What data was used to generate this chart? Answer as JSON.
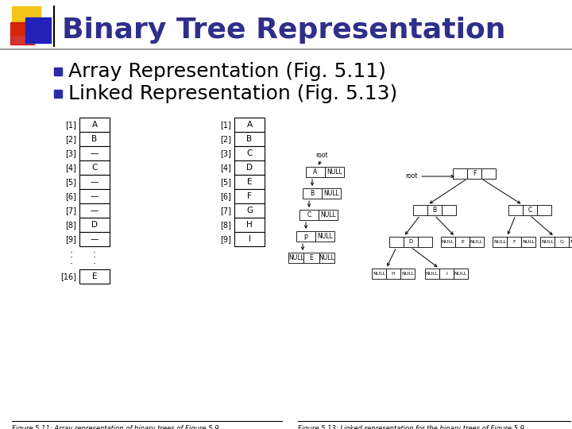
{
  "title": "Binary Tree Representation",
  "title_color": "#2E2E8B",
  "title_fontsize": 26,
  "bullet1": "Array Representation (Fig. 5.11)",
  "bullet2": "Linked Representation (Fig. 5.13)",
  "bullet_fontsize": 18,
  "bullet_color": "#000000",
  "bullet_square_color": "#2B2BAA",
  "bg_color": "#FFFFFF",
  "decoration_yellow": "#F5C518",
  "decoration_red": "#CC0000",
  "decoration_blue": "#2222BB",
  "header_line_color": "#888888",
  "fig511_caption": "Figure 5.11: Array representation of binary trees of Figure 5.9",
  "fig513_caption": "Figure 5.13: Linked representation for the binary trees of Figure 5.9",
  "array1_labels": [
    "[1]",
    "[2]",
    "[3]",
    "[4]",
    "[5]",
    "[6]",
    "[7]",
    "[8]",
    "[9]",
    "[16]"
  ],
  "array1_values": [
    "A",
    "B",
    "—",
    "C",
    "—",
    "—",
    "—",
    "D",
    "—",
    "E"
  ],
  "array2_labels": [
    "[1]",
    "[2]",
    "[3]",
    "[4]",
    "[5]",
    "[6]",
    "[7]",
    "[8]",
    "[9]"
  ],
  "array2_values": [
    "A",
    "B",
    "C",
    "D",
    "E",
    "F",
    "G",
    "H",
    "I"
  ]
}
